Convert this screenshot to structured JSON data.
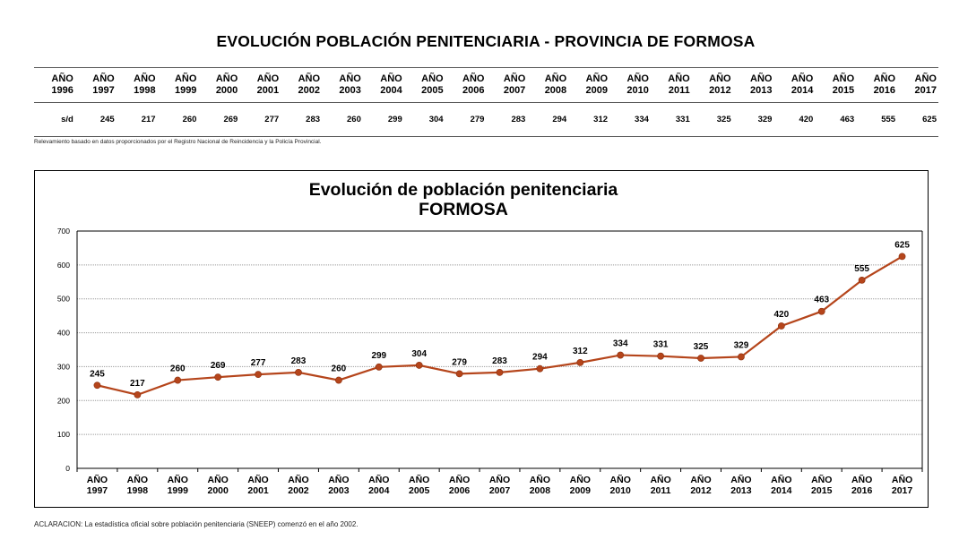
{
  "page": {
    "title": "EVOLUCIÓN POBLACIÓN PENITENCIARIA - PROVINCIA DE FORMOSA",
    "table_note": "Relevamiento basado en datos proporcionados por el Registro Nacional de Reincidencia y la Policía Provincial.",
    "footnote": "ACLARACION: La estadística oficial sobre población penitenciaria (SNEEP) comenzó en el año 2002."
  },
  "table": {
    "columns": [
      {
        "word": "AÑO",
        "year": "1996",
        "value": "s/d"
      },
      {
        "word": "AÑO",
        "year": "1997",
        "value": "245"
      },
      {
        "word": "AÑO",
        "year": "1998",
        "value": "217"
      },
      {
        "word": "AÑO",
        "year": "1999",
        "value": "260"
      },
      {
        "word": "AÑO",
        "year": "2000",
        "value": "269"
      },
      {
        "word": "AÑO",
        "year": "2001",
        "value": "277"
      },
      {
        "word": "AÑO",
        "year": "2002",
        "value": "283"
      },
      {
        "word": "AÑO",
        "year": "2003",
        "value": "260"
      },
      {
        "word": "AÑO",
        "year": "2004",
        "value": "299"
      },
      {
        "word": "AÑO",
        "year": "2005",
        "value": "304"
      },
      {
        "word": "AÑO",
        "year": "2006",
        "value": "279"
      },
      {
        "word": "AÑO",
        "year": "2007",
        "value": "283"
      },
      {
        "word": "AÑO",
        "year": "2008",
        "value": "294"
      },
      {
        "word": "AÑO",
        "year": "2009",
        "value": "312"
      },
      {
        "word": "AÑO",
        "year": "2010",
        "value": "334"
      },
      {
        "word": "AÑO",
        "year": "2011",
        "value": "331"
      },
      {
        "word": "AÑO",
        "year": "2012",
        "value": "325"
      },
      {
        "word": "AÑO",
        "year": "2013",
        "value": "329"
      },
      {
        "word": "AÑO",
        "year": "2014",
        "value": "420"
      },
      {
        "word": "AÑO",
        "year": "2015",
        "value": "463"
      },
      {
        "word": "AÑO",
        "year": "2016",
        "value": "555"
      },
      {
        "word": "AÑO",
        "year": "2017",
        "value": "625"
      }
    ]
  },
  "chart_data": {
    "type": "line",
    "title": [
      "Evolución de población penitenciaria",
      "FORMOSA"
    ],
    "category_word": "AÑO",
    "categories": [
      "1997",
      "1998",
      "1999",
      "2000",
      "2001",
      "2002",
      "2003",
      "2004",
      "2005",
      "2006",
      "2007",
      "2008",
      "2009",
      "2010",
      "2011",
      "2012",
      "2013",
      "2014",
      "2015",
      "2016",
      "2017"
    ],
    "series": [
      {
        "values": [
          245,
          217,
          260,
          269,
          277,
          283,
          260,
          299,
          304,
          279,
          283,
          294,
          312,
          334,
          331,
          325,
          329,
          420,
          463,
          555,
          625
        ]
      }
    ],
    "ylim": [
      0,
      700
    ],
    "yticks": [
      0,
      100,
      200,
      300,
      400,
      500,
      600,
      700
    ],
    "grid": true,
    "legend": "none",
    "color": "#B5451B"
  }
}
